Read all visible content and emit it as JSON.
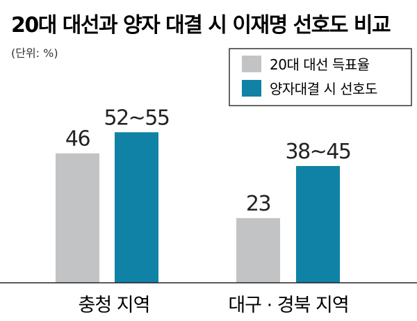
{
  "title": "20대 대선과 양자 대결 시 이재명 선호도 비교",
  "unit_note": "(단위: %)",
  "colors": {
    "gray": "#c2c3c4",
    "blue": "#0f82a5",
    "text": "#222222"
  },
  "chart_data": {
    "type": "bar",
    "title": "20대 대선과 양자 대결 시 이재명 선호도 비교",
    "categories": [
      "충청 지역",
      "대구 · 경북 지역"
    ],
    "series": [
      {
        "name": "20대 대선 득표율",
        "color": "#c2c3c4",
        "values": [
          46,
          23
        ],
        "labels": [
          "46",
          "23"
        ]
      },
      {
        "name": "양자대결 시 선호도",
        "color": "#0f82a5",
        "values": [
          53.5,
          41.5
        ],
        "ranges": [
          [
            52,
            55
          ],
          [
            38,
            45
          ]
        ],
        "labels": [
          "52~55",
          "38~45"
        ]
      }
    ],
    "ylim": [
      0,
      58
    ],
    "grid": false,
    "legend_position": "top-right"
  }
}
